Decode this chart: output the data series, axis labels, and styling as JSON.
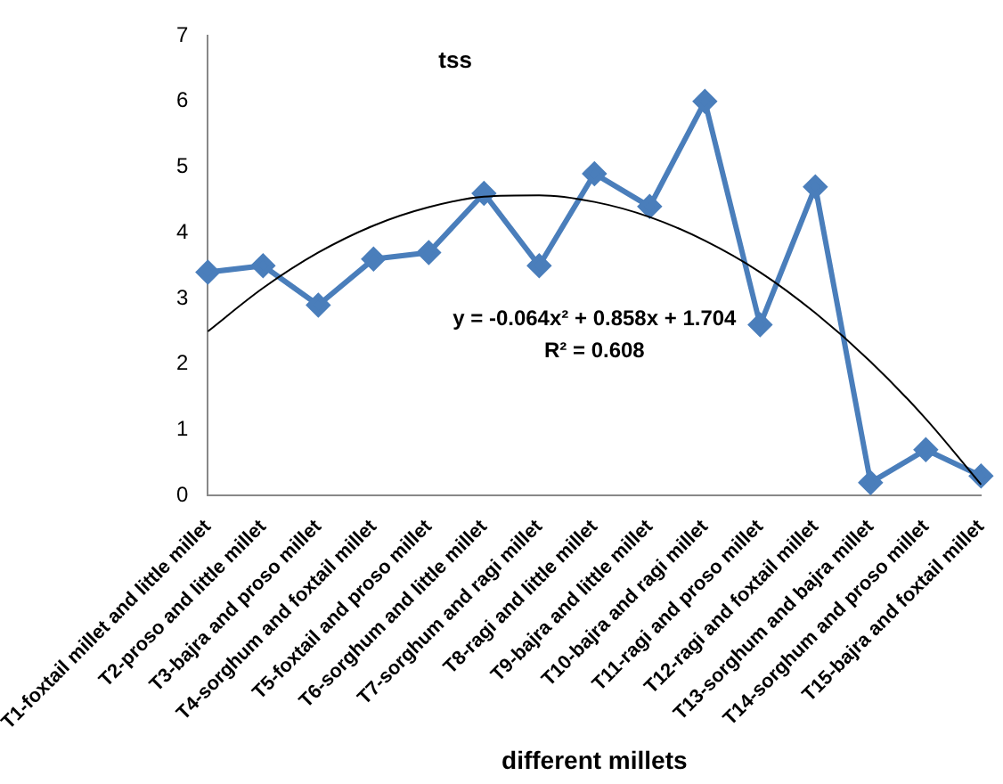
{
  "chart_data": {
    "type": "line",
    "title": "tss",
    "xlabel": "different millets",
    "categories": [
      "T1-foxtail millet and little millet",
      "T2-proso and little millet",
      "T3-bajra and proso millet",
      "T4-sorghum and foxtail millet",
      "T5-foxtail and proso millet",
      "T6-sorghum and little millet",
      "T7-sorghum and ragi millet",
      "T8-ragi and little millet",
      "T9-bajra and little millet",
      "T10-bajra and ragi millet",
      "T11-ragi and proso millet",
      "T12-ragi and foxtail millet",
      "T13-sorghum and bajra millet",
      "T14-sorghum and proso millet",
      "T15-bajra and foxtail millet"
    ],
    "series": [
      {
        "color": "#4a7ebb",
        "values": [
          3.4,
          3.5,
          2.9,
          3.6,
          3.7,
          4.6,
          3.5,
          4.9,
          4.4,
          6.0,
          2.6,
          4.7,
          0.2,
          0.7,
          0.3
        ]
      },
      {
        "type": "line",
        "color": "#000000",
        "marker": "none",
        "values": [
          2.5,
          3.16,
          3.7,
          4.11,
          4.39,
          4.55,
          4.57,
          4.47,
          4.24,
          3.88,
          3.4,
          2.78,
          2.04,
          1.17,
          0.17
        ]
      }
    ],
    "ylim": [
      0,
      7
    ],
    "yticks": [
      0,
      1,
      2,
      3,
      4,
      5,
      6,
      7
    ],
    "grid": false,
    "legend": false,
    "marker": "diamond",
    "line_style": "solid",
    "annotations": [
      "y = -0.064x² + 0.858x + 1.704",
      "R² = 0.608"
    ]
  }
}
